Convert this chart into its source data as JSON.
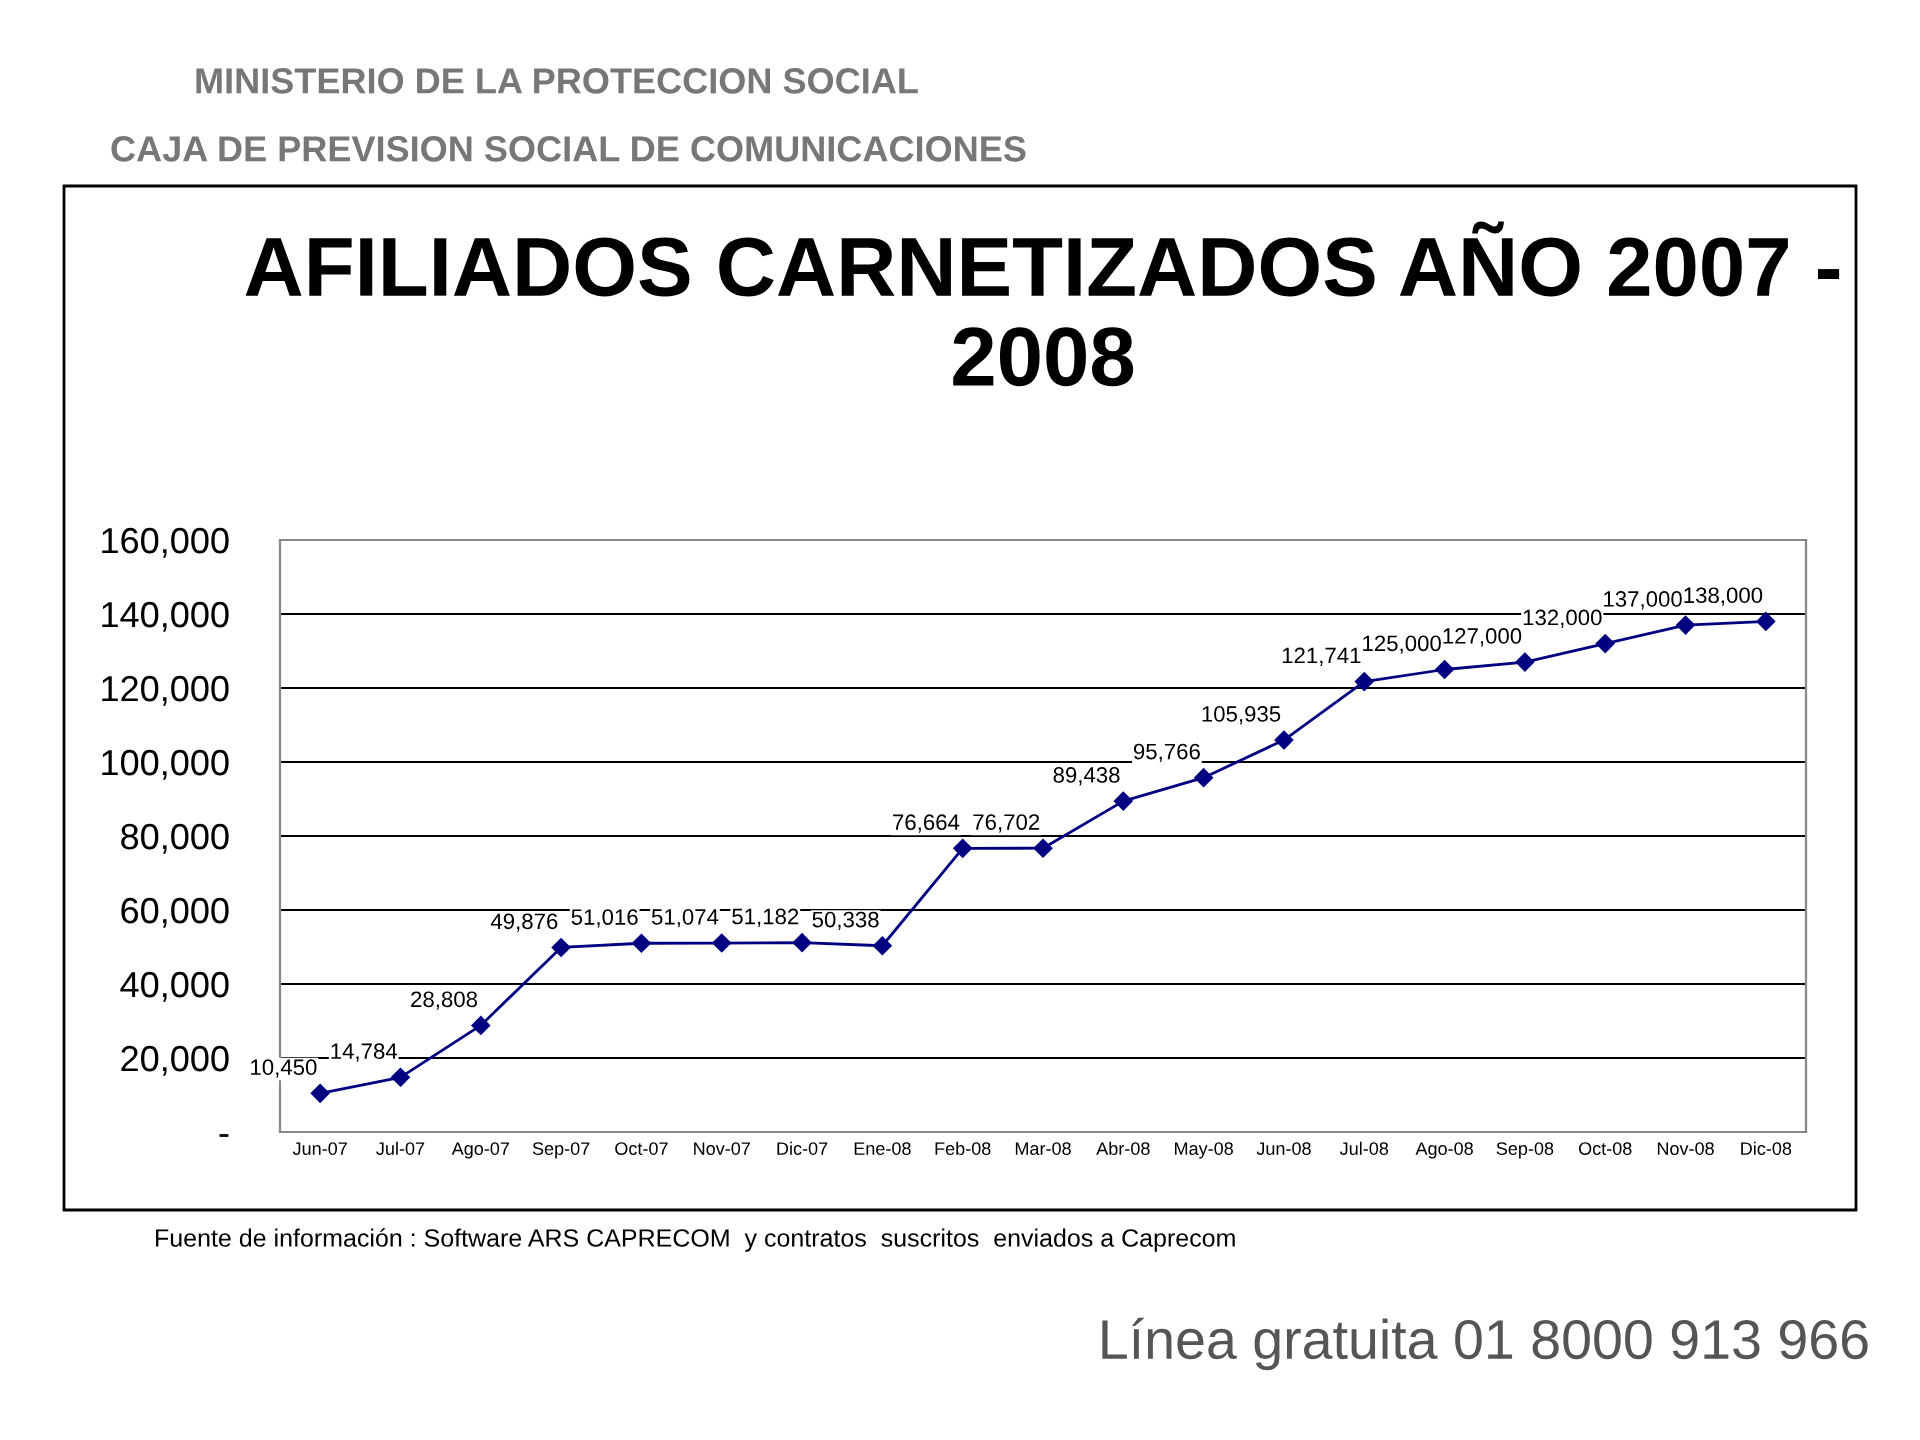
{
  "chart_data": {
    "type": "line",
    "title": "AFILIADOS CARNETIZADOS AÑO 2007 - 2008",
    "annotations": [
      "MINISTERIO DE LA PROTECCION SOCIAL",
      "CAJA DE PREVISION SOCIAL DE COMUNICACIONES",
      "Fuente de información : Software ARS CAPRECOM  y contratos  suscritos  enviados a Caprecom",
      "Línea gratuita 01 8000 913 966"
    ],
    "categories": [
      "Jun-07",
      "Jul-07",
      "Ago-07",
      "Sep-07",
      "Oct-07",
      "Nov-07",
      "Dic-07",
      "Ene-08",
      "Feb-08",
      "Mar-08",
      "Abr-08",
      "May-08",
      "Jun-08",
      "Jul-08",
      "Ago-08",
      "Sep-08",
      "Oct-08",
      "Nov-08",
      "Dic-08"
    ],
    "series": [
      {
        "color": "#000080",
        "values": [
          10450,
          14784,
          28808,
          49876,
          51016,
          51074,
          51182,
          50338,
          76664,
          76702,
          89438,
          95766,
          105935,
          121741,
          125000,
          127000,
          132000,
          137000,
          138000
        ],
        "value_labels": [
          "10,450",
          "14,784",
          "28,808",
          "49,876",
          "51,016",
          "51,074",
          "51,182",
          "50,338",
          "76,664",
          "76,702",
          "89,438",
          "95,766",
          "105,935",
          "121,741",
          "125,000",
          "127,000",
          "132,000",
          "137,000",
          "138,000"
        ]
      }
    ],
    "ylim": [
      0,
      160000
    ],
    "yticks": [
      {
        "value": 0,
        "label": "-"
      },
      {
        "value": 20000,
        "label": "20,000"
      },
      {
        "value": 40000,
        "label": "40,000"
      },
      {
        "value": 60000,
        "label": "60,000"
      },
      {
        "value": 80000,
        "label": "80,000"
      },
      {
        "value": 100000,
        "label": "100,000"
      },
      {
        "value": 120000,
        "label": "120,000"
      },
      {
        "value": 140000,
        "label": "140,000"
      },
      {
        "value": 160000,
        "label": "160,000"
      }
    ],
    "grid": "y",
    "marker": "diamond",
    "line_style": "solid"
  }
}
